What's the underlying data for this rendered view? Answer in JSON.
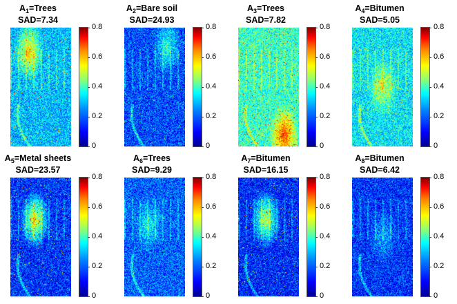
{
  "colorbar_ticks": [
    "0",
    "0.2",
    "0.4",
    "0.6",
    "0.8"
  ],
  "panels": [
    {
      "prefix": "A",
      "sub": "1",
      "label": "=Trees",
      "sad": "SAD=7.34",
      "mean": 0.22,
      "hot": 0.55,
      "hotx": 0.3,
      "hoty": 0.2
    },
    {
      "prefix": "A",
      "sub": "2",
      "label": "=Bare soil",
      "sad": "SAD=24.93",
      "mean": 0.12,
      "hot": 0.35,
      "hotx": 0.7,
      "hoty": 0.15
    },
    {
      "prefix": "A",
      "sub": "3",
      "label": "=Trees",
      "sad": "SAD=7.82",
      "mean": 0.32,
      "hot": 0.6,
      "hotx": 0.75,
      "hoty": 0.9
    },
    {
      "prefix": "A",
      "sub": "4",
      "label": "=Bitumen",
      "sad": "SAD=5.05",
      "mean": 0.26,
      "hot": 0.35,
      "hotx": 0.5,
      "hoty": 0.5
    },
    {
      "prefix": "A",
      "sub": "5",
      "label": "=Metal sheets",
      "sad": "SAD=23.57",
      "mean": 0.1,
      "hot": 0.7,
      "hotx": 0.4,
      "hoty": 0.35
    },
    {
      "prefix": "A",
      "sub": "6",
      "label": "=Trees",
      "sad": "SAD=9.29",
      "mean": 0.14,
      "hot": 0.25,
      "hotx": 0.4,
      "hoty": 0.4
    },
    {
      "prefix": "A",
      "sub": "7",
      "label": "=Bitumen",
      "sad": "SAD=16.15",
      "mean": 0.09,
      "hot": 0.65,
      "hotx": 0.45,
      "hoty": 0.35
    },
    {
      "prefix": "A",
      "sub": "8",
      "label": "=Bitumen",
      "sad": "SAD=6.42",
      "mean": 0.1,
      "hot": 0.2,
      "hotx": 0.5,
      "hoty": 0.5
    }
  ],
  "chart_data": {
    "type": "heatmap",
    "colorbar_range": [
      0,
      0.8
    ],
    "colormap": "jet",
    "grid": "2x4",
    "panels": [
      {
        "endmember": "A1",
        "material": "Trees",
        "SAD": 7.34
      },
      {
        "endmember": "A2",
        "material": "Bare soil",
        "SAD": 24.93
      },
      {
        "endmember": "A3",
        "material": "Trees",
        "SAD": 7.82
      },
      {
        "endmember": "A4",
        "material": "Bitumen",
        "SAD": 5.05
      },
      {
        "endmember": "A5",
        "material": "Metal sheets",
        "SAD": 23.57
      },
      {
        "endmember": "A6",
        "material": "Trees",
        "SAD": 9.29
      },
      {
        "endmember": "A7",
        "material": "Bitumen",
        "SAD": 16.15
      },
      {
        "endmember": "A8",
        "material": "Bitumen",
        "SAD": 6.42
      }
    ]
  }
}
